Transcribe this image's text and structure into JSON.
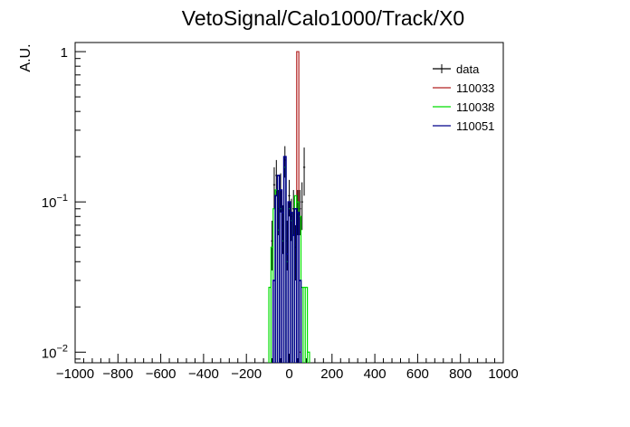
{
  "chart_data": {
    "type": "line",
    "title": "VetoSignal/Calo1000/Track/X0",
    "ylabel": "A.U.",
    "xlabel": "",
    "xlim": [
      -1000,
      1000
    ],
    "ylim": [
      0.0085,
      1.15
    ],
    "yscale": "log",
    "x_ticks": [
      -1000,
      -800,
      -600,
      -400,
      -200,
      0,
      200,
      400,
      600,
      800,
      1000
    ],
    "x_tick_labels": [
      "−1000",
      "−800",
      "−600",
      "−400",
      "−200",
      "0",
      "200",
      "400",
      "600",
      "800",
      "1000"
    ],
    "y_ticks": [
      0.01,
      0.1,
      1
    ],
    "y_tick_labels": [
      [
        "10",
        "−2"
      ],
      [
        "10",
        "−1"
      ],
      [
        "1",
        ""
      ]
    ],
    "legend_position": "top-right",
    "grid": false,
    "series": [
      {
        "name": "data",
        "color": "#000000",
        "style": "errorbar",
        "x": [
          -80,
          -70,
          -60,
          -50,
          -40,
          -30,
          -20,
          -10,
          0,
          10,
          20,
          30,
          40,
          50,
          60,
          70
        ],
        "values": [
          0.055,
          0.13,
          0.15,
          0.09,
          0.12,
          0.07,
          0.19,
          0.055,
          0.11,
          0.08,
          0.09,
          0.05,
          0.09,
          0.09,
          0.1,
          0.17
        ],
        "errors": [
          0.02,
          0.04,
          0.04,
          0.03,
          0.035,
          0.025,
          0.045,
          0.02,
          0.03,
          0.025,
          0.03,
          0.02,
          0.03,
          0.03,
          0.035,
          0.06
        ]
      },
      {
        "name": "110033",
        "color": "#b22222",
        "style": "hist",
        "x": [
          40,
          50
        ],
        "values": [
          1.0,
          0.01
        ]
      },
      {
        "name": "110038",
        "color": "#00dd00",
        "style": "hist",
        "x": [
          -90,
          -80,
          -70,
          -60,
          -50,
          -40,
          -30,
          -20,
          -10,
          0,
          10,
          20,
          30,
          40,
          50,
          60,
          70,
          80,
          90
        ],
        "values": [
          0.027,
          0.05,
          0.09,
          0.12,
          0.065,
          0.09,
          0.055,
          0.17,
          0.04,
          0.09,
          0.075,
          0.06,
          0.11,
          0.1,
          0.08,
          0.027,
          0.027,
          0.027,
          0.01
        ]
      },
      {
        "name": "110051",
        "color": "#00008b",
        "style": "hist",
        "x": [
          -70,
          -60,
          -50,
          -40,
          -30,
          -20,
          -10,
          0,
          10,
          20,
          30,
          40,
          50
        ],
        "values": [
          0.03,
          0.11,
          0.15,
          0.12,
          0.085,
          0.2,
          0.045,
          0.1,
          0.085,
          0.06,
          0.09,
          0.085,
          0.03
        ]
      }
    ]
  }
}
